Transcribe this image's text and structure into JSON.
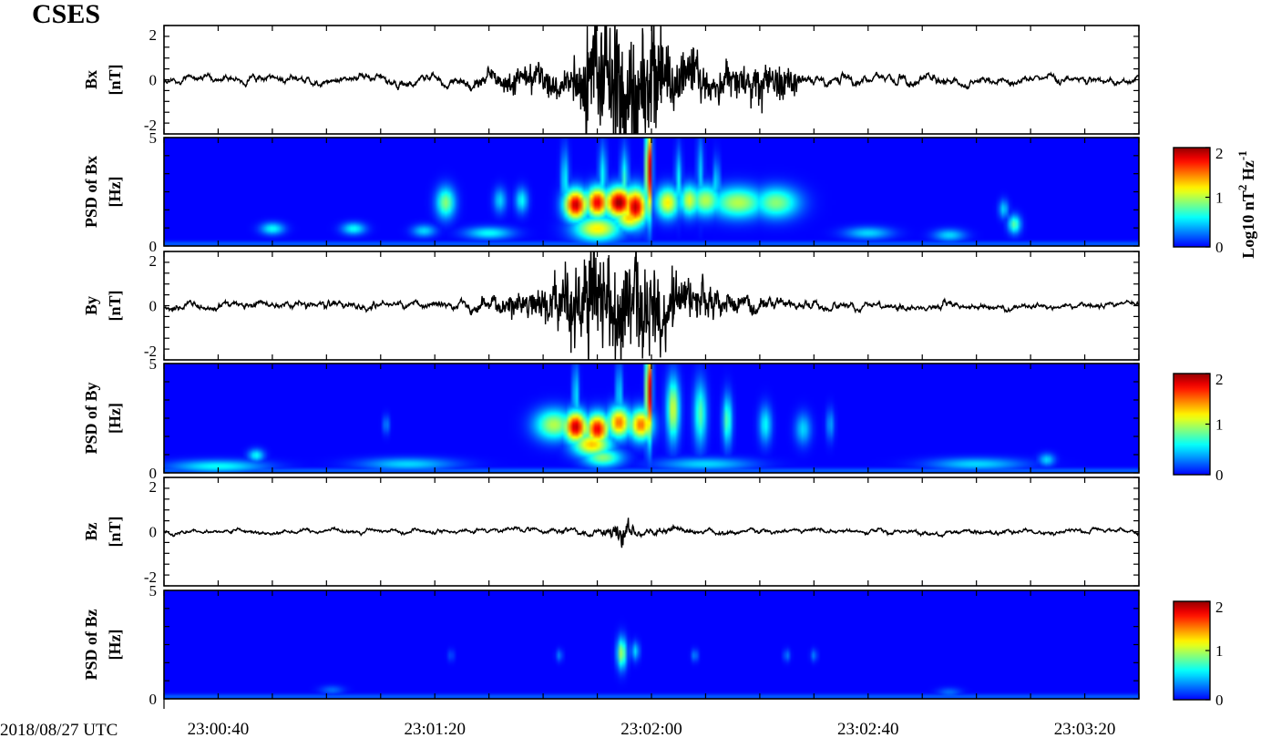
{
  "title": "CSES",
  "date_label": "2018/08/27 UTC",
  "colors": {
    "trace": "#000000",
    "spectrogram_background": "#00008f",
    "colormap": [
      "#00008f",
      "#0000ff",
      "#00ffff",
      "#ffff00",
      "#ff0000",
      "#800000"
    ]
  },
  "chart_data": [
    {
      "type": "line",
      "data_name": "bx-waveform-panel",
      "component": "Bx",
      "ylabel_line1": "Bx",
      "ylabel_line2": "[nT]",
      "yticks": [
        "2",
        "0",
        "-2"
      ],
      "ylim": [
        -2.4,
        2.4
      ],
      "amplitude_profile": [
        {
          "t": 0,
          "a": 0.3
        },
        {
          "t": 50,
          "a": 0.4
        },
        {
          "t": 66,
          "a": 0.7
        },
        {
          "t": 75,
          "a": 0.8
        },
        {
          "t": 78,
          "a": 1.6
        },
        {
          "t": 84,
          "a": 2.1
        },
        {
          "t": 88,
          "a": 2.3
        },
        {
          "t": 92,
          "a": 1.4
        },
        {
          "t": 100,
          "a": 0.8
        },
        {
          "t": 115,
          "a": 0.9
        },
        {
          "t": 118,
          "a": 0.5
        },
        {
          "t": 168,
          "a": 0.3
        }
      ]
    },
    {
      "type": "heatmap",
      "data_name": "bx-psd-panel",
      "component": "Bx",
      "ylabel_line1": "PSD of Bx",
      "ylabel_line2": "[Hz]",
      "yticks": [
        "5",
        "0"
      ],
      "ylim": [
        0,
        5
      ],
      "colorbar": {
        "min": 0,
        "max": 2,
        "ticks": [
          "2",
          "1",
          "0"
        ],
        "label": "Log10 nT^2 Hz^-1"
      },
      "blobs": [
        {
          "t": 76,
          "f": 1.9,
          "v": 1.9,
          "st": 1.5,
          "sf": 0.5
        },
        {
          "t": 80,
          "f": 2.0,
          "v": 1.8,
          "st": 1.5,
          "sf": 0.5
        },
        {
          "t": 84,
          "f": 2.0,
          "v": 2.0,
          "st": 1.8,
          "sf": 0.5
        },
        {
          "t": 87,
          "f": 1.8,
          "v": 1.9,
          "st": 1.5,
          "sf": 0.6
        },
        {
          "t": 89.5,
          "f": 3.5,
          "v": 2.0,
          "st": 0.4,
          "sf": 1.5
        },
        {
          "t": 93,
          "f": 2.0,
          "v": 1.2,
          "st": 1.5,
          "sf": 0.5
        },
        {
          "t": 97,
          "f": 2.1,
          "v": 1.1,
          "st": 1.2,
          "sf": 0.5
        },
        {
          "t": 100,
          "f": 2.1,
          "v": 1.0,
          "st": 2.0,
          "sf": 0.5
        },
        {
          "t": 106,
          "f": 2.0,
          "v": 1.0,
          "st": 3.5,
          "sf": 0.5
        },
        {
          "t": 113,
          "f": 2.0,
          "v": 0.9,
          "st": 3.0,
          "sf": 0.5
        },
        {
          "t": 52,
          "f": 2.0,
          "v": 0.9,
          "st": 1.2,
          "sf": 0.5
        },
        {
          "t": 62,
          "f": 2.1,
          "v": 0.5,
          "st": 0.8,
          "sf": 0.4
        },
        {
          "t": 66,
          "f": 2.1,
          "v": 0.6,
          "st": 0.8,
          "sf": 0.4
        },
        {
          "t": 80,
          "f": 0.8,
          "v": 1.2,
          "st": 3.0,
          "sf": 0.4
        },
        {
          "t": 86,
          "f": 1.3,
          "v": 1.3,
          "st": 2.0,
          "sf": 0.4
        },
        {
          "t": 74,
          "f": 3.0,
          "v": 0.6,
          "st": 0.5,
          "sf": 1.0
        },
        {
          "t": 81,
          "f": 3.2,
          "v": 0.6,
          "st": 0.5,
          "sf": 1.0
        },
        {
          "t": 85,
          "f": 3.0,
          "v": 0.7,
          "st": 0.5,
          "sf": 1.0
        },
        {
          "t": 95,
          "f": 3.0,
          "v": 0.6,
          "st": 0.4,
          "sf": 1.0
        },
        {
          "t": 99,
          "f": 3.3,
          "v": 0.5,
          "st": 0.4,
          "sf": 1.2
        },
        {
          "t": 102,
          "f": 2.8,
          "v": 0.6,
          "st": 0.4,
          "sf": 0.8
        },
        {
          "t": 155,
          "f": 1.7,
          "v": 0.5,
          "st": 0.6,
          "sf": 0.3
        },
        {
          "t": 157,
          "f": 1.0,
          "v": 0.8,
          "st": 0.8,
          "sf": 0.3
        },
        {
          "t": 20,
          "f": 0.8,
          "v": 0.6,
          "st": 1.5,
          "sf": 0.2
        },
        {
          "t": 35,
          "f": 0.8,
          "v": 0.6,
          "st": 1.5,
          "sf": 0.2
        },
        {
          "t": 48,
          "f": 0.7,
          "v": 0.5,
          "st": 1.5,
          "sf": 0.2
        },
        {
          "t": 60,
          "f": 0.6,
          "v": 0.6,
          "st": 3.0,
          "sf": 0.2
        },
        {
          "t": 130,
          "f": 0.6,
          "v": 0.5,
          "st": 3.0,
          "sf": 0.2
        },
        {
          "t": 145,
          "f": 0.5,
          "v": 0.5,
          "st": 2.0,
          "sf": 0.2
        }
      ]
    },
    {
      "type": "line",
      "data_name": "by-waveform-panel",
      "component": "By",
      "ylabel_line1": "By",
      "ylabel_line2": "[nT]",
      "yticks": [
        "2",
        "0",
        "-2"
      ],
      "ylim": [
        -2.4,
        2.4
      ],
      "amplitude_profile": [
        {
          "t": 0,
          "a": 0.35
        },
        {
          "t": 50,
          "a": 0.35
        },
        {
          "t": 62,
          "a": 0.6
        },
        {
          "t": 72,
          "a": 0.9
        },
        {
          "t": 78,
          "a": 1.6
        },
        {
          "t": 84,
          "a": 1.7
        },
        {
          "t": 88,
          "a": 1.7
        },
        {
          "t": 92,
          "a": 1.2
        },
        {
          "t": 100,
          "a": 0.8
        },
        {
          "t": 110,
          "a": 0.55
        },
        {
          "t": 125,
          "a": 0.35
        },
        {
          "t": 168,
          "a": 0.25
        }
      ]
    },
    {
      "type": "heatmap",
      "data_name": "by-psd-panel",
      "component": "By",
      "ylabel_line1": "PSD of By",
      "ylabel_line2": "[Hz]",
      "yticks": [
        "5",
        "0"
      ],
      "ylim": [
        0,
        5
      ],
      "colorbar": {
        "min": 0,
        "max": 2,
        "ticks": [
          "2",
          "1",
          "0"
        ],
        "label": ""
      },
      "blobs": [
        {
          "t": 72,
          "f": 2.2,
          "v": 1.0,
          "st": 2.5,
          "sf": 0.5
        },
        {
          "t": 76,
          "f": 2.1,
          "v": 1.9,
          "st": 1.5,
          "sf": 0.5
        },
        {
          "t": 80,
          "f": 2.0,
          "v": 1.8,
          "st": 1.5,
          "sf": 0.5
        },
        {
          "t": 84,
          "f": 2.3,
          "v": 1.5,
          "st": 1.5,
          "sf": 0.5
        },
        {
          "t": 88,
          "f": 2.2,
          "v": 1.5,
          "st": 1.5,
          "sf": 0.5
        },
        {
          "t": 89.5,
          "f": 3.7,
          "v": 2.0,
          "st": 0.4,
          "sf": 1.5
        },
        {
          "t": 94,
          "f": 2.9,
          "v": 1.1,
          "st": 0.8,
          "sf": 1.0
        },
        {
          "t": 99,
          "f": 2.7,
          "v": 0.8,
          "st": 0.8,
          "sf": 1.0
        },
        {
          "t": 104,
          "f": 2.4,
          "v": 0.8,
          "st": 0.6,
          "sf": 0.8
        },
        {
          "t": 111,
          "f": 2.2,
          "v": 0.6,
          "st": 0.8,
          "sf": 0.6
        },
        {
          "t": 118,
          "f": 2.0,
          "v": 0.5,
          "st": 1.0,
          "sf": 0.5
        },
        {
          "t": 123,
          "f": 2.2,
          "v": 0.4,
          "st": 0.5,
          "sf": 0.5
        },
        {
          "t": 79,
          "f": 1.3,
          "v": 1.3,
          "st": 2.5,
          "sf": 0.4
        },
        {
          "t": 81,
          "f": 0.7,
          "v": 0.9,
          "st": 2.5,
          "sf": 0.3
        },
        {
          "t": 76,
          "f": 3.5,
          "v": 0.6,
          "st": 0.4,
          "sf": 1.0
        },
        {
          "t": 84,
          "f": 3.5,
          "v": 0.6,
          "st": 0.4,
          "sf": 1.0
        },
        {
          "t": 41,
          "f": 2.2,
          "v": 0.35,
          "st": 0.4,
          "sf": 0.3
        },
        {
          "t": 17,
          "f": 0.8,
          "v": 0.6,
          "st": 1.0,
          "sf": 0.2
        },
        {
          "t": 10,
          "f": 0.3,
          "v": 0.6,
          "st": 6.0,
          "sf": 0.2
        },
        {
          "t": 45,
          "f": 0.4,
          "v": 0.5,
          "st": 6.0,
          "sf": 0.2
        },
        {
          "t": 100,
          "f": 0.4,
          "v": 0.5,
          "st": 6.0,
          "sf": 0.2
        },
        {
          "t": 150,
          "f": 0.4,
          "v": 0.5,
          "st": 6.0,
          "sf": 0.2
        },
        {
          "t": 163,
          "f": 0.6,
          "v": 0.5,
          "st": 1.0,
          "sf": 0.2
        }
      ]
    },
    {
      "type": "line",
      "data_name": "bz-waveform-panel",
      "component": "Bz",
      "ylabel_line1": "Bz",
      "ylabel_line2": "[nT]",
      "yticks": [
        "2",
        "0",
        "-2"
      ],
      "ylim": [
        -2.4,
        2.4
      ],
      "amplitude_profile": [
        {
          "t": 0,
          "a": 0.18
        },
        {
          "t": 60,
          "a": 0.2
        },
        {
          "t": 80,
          "a": 0.28
        },
        {
          "t": 84,
          "a": 0.7
        },
        {
          "t": 88,
          "a": 0.4
        },
        {
          "t": 100,
          "a": 0.22
        },
        {
          "t": 168,
          "a": 0.2
        }
      ]
    },
    {
      "type": "heatmap",
      "data_name": "bz-psd-panel",
      "component": "Bz",
      "ylabel_line1": "PSD of Bz",
      "ylabel_line2": "[Hz]",
      "yticks": [
        "5",
        "0"
      ],
      "ylim": [
        0,
        5
      ],
      "colorbar": {
        "min": 0,
        "max": 2,
        "ticks": [
          "2",
          "1",
          "0"
        ],
        "label": ""
      },
      "blobs": [
        {
          "t": 84.5,
          "f": 2.1,
          "v": 1.0,
          "st": 0.6,
          "sf": 0.5
        },
        {
          "t": 87,
          "f": 2.2,
          "v": 0.5,
          "st": 0.5,
          "sf": 0.3
        },
        {
          "t": 73,
          "f": 2.0,
          "v": 0.3,
          "st": 0.4,
          "sf": 0.2
        },
        {
          "t": 98,
          "f": 2.0,
          "v": 0.35,
          "st": 0.4,
          "sf": 0.2
        },
        {
          "t": 53,
          "f": 2.0,
          "v": 0.2,
          "st": 0.4,
          "sf": 0.2
        },
        {
          "t": 115,
          "f": 2.0,
          "v": 0.3,
          "st": 0.4,
          "sf": 0.2
        },
        {
          "t": 120,
          "f": 2.0,
          "v": 0.3,
          "st": 0.4,
          "sf": 0.2
        },
        {
          "t": 31,
          "f": 0.4,
          "v": 0.25,
          "st": 1.5,
          "sf": 0.15
        },
        {
          "t": 145,
          "f": 0.3,
          "v": 0.25,
          "st": 1.5,
          "sf": 0.15
        }
      ]
    }
  ],
  "x_axis": {
    "tmin": 0,
    "tmax": 180,
    "seconds_per_label": 40,
    "tick_labels": [
      {
        "t": 10,
        "label": "23:00:40"
      },
      {
        "t": 50,
        "label": "23:01:20"
      },
      {
        "t": 90,
        "label": "23:02:00"
      },
      {
        "t": 130,
        "label": "23:02:40"
      },
      {
        "t": 170,
        "label": "23:03:20"
      }
    ]
  }
}
